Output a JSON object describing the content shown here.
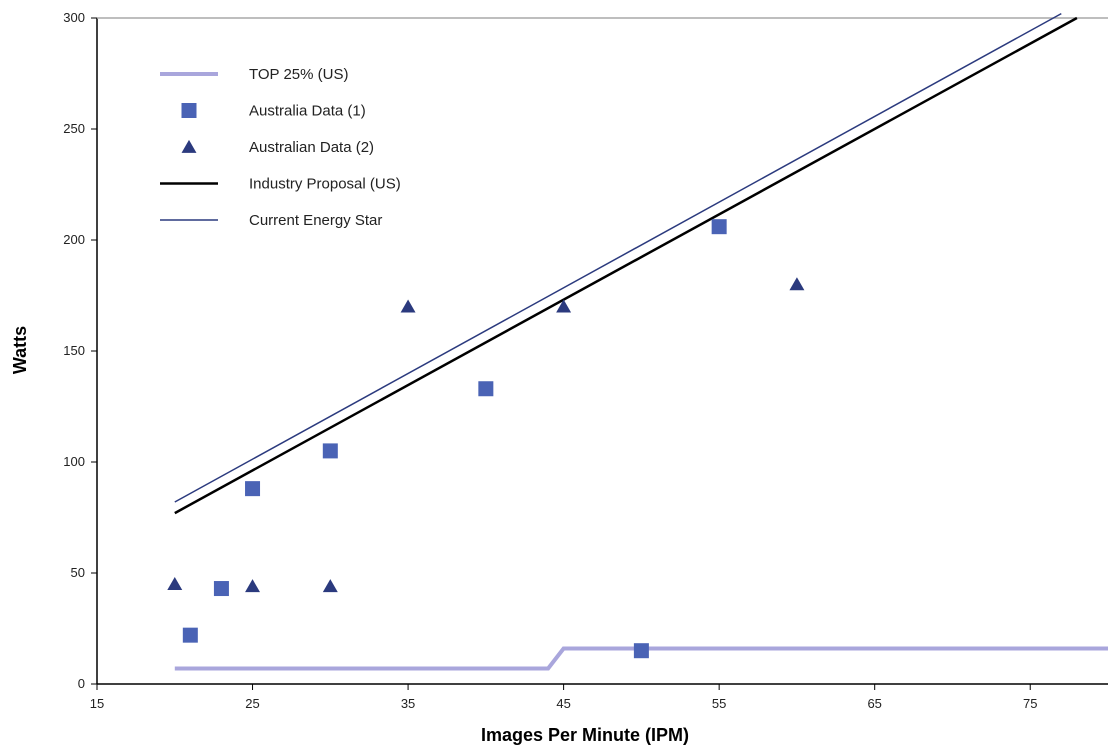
{
  "chart_data": {
    "type": "scatter",
    "title": "",
    "xlabel": "Images Per Minute (IPM)",
    "ylabel": "Watts",
    "xlim": [
      15,
      80
    ],
    "ylim": [
      0,
      300
    ],
    "xticks": [
      15,
      25,
      35,
      45,
      55,
      65,
      75
    ],
    "yticks": [
      0,
      50,
      100,
      150,
      200,
      250,
      300
    ],
    "grid": false,
    "reference_line_y": 300,
    "legend_position": "top-left",
    "series": [
      {
        "name": "TOP 25% (US)",
        "kind": "line",
        "color": "#a9a6dc",
        "points": [
          [
            20,
            7
          ],
          [
            44,
            7
          ],
          [
            45,
            16
          ],
          [
            80,
            16
          ]
        ]
      },
      {
        "name": "Australia Data (1)",
        "kind": "square",
        "color": "#4a63b5",
        "points": [
          [
            21,
            22
          ],
          [
            23,
            43
          ],
          [
            25,
            88
          ],
          [
            30,
            105
          ],
          [
            40,
            133
          ],
          [
            50,
            15
          ],
          [
            55,
            206
          ]
        ]
      },
      {
        "name": "Australian Data (2)",
        "kind": "triangle",
        "color": "#2b3a7e",
        "points": [
          [
            20,
            45
          ],
          [
            25,
            44
          ],
          [
            30,
            44
          ],
          [
            35,
            170
          ],
          [
            45,
            170
          ],
          [
            60,
            180
          ]
        ]
      },
      {
        "name": "Industry Proposal (US)",
        "kind": "line",
        "color": "#000000",
        "points": [
          [
            20,
            77
          ],
          [
            78,
            300
          ]
        ]
      },
      {
        "name": "Current Energy Star",
        "kind": "line",
        "color": "#2b3a7e",
        "points": [
          [
            20,
            82
          ],
          [
            77,
            302
          ]
        ]
      }
    ]
  }
}
